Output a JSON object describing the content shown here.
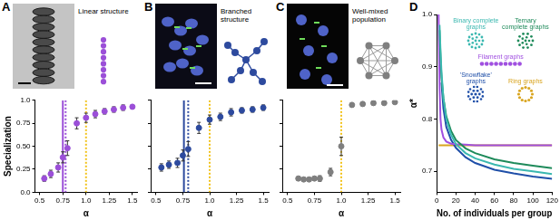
{
  "chart_data": [
    {
      "type": "scatter",
      "title": "A",
      "annotations": [
        "Linear structure"
      ],
      "x_label": "α",
      "y_label": "Specialization",
      "x": [
        0.55,
        0.62,
        0.7,
        0.75,
        0.8,
        0.9,
        1.0,
        1.1,
        1.2,
        1.3,
        1.4,
        1.5
      ],
      "values": [
        0.15,
        0.2,
        0.27,
        0.38,
        0.48,
        0.75,
        0.81,
        0.85,
        0.88,
        0.9,
        0.92,
        0.93
      ],
      "errors": [
        0.03,
        0.04,
        0.05,
        0.06,
        0.08,
        0.06,
        0.05,
        0.04,
        0.03,
        0.03,
        0.03,
        0.02
      ],
      "color": "#9b4fd8",
      "marker": "circle",
      "xlim": [
        0.45,
        1.55
      ],
      "xticks": [
        0.5,
        0.75,
        {
          "value": 1.0,
          "label": "1.0"
        },
        1.25,
        1.5
      ],
      "ylim": [
        0,
        1.0
      ],
      "yticks": [
        {
          "value": 0,
          "label": "0.0"
        },
        0.25,
        {
          "value": 0.5,
          "label": "0.50"
        },
        0.75,
        {
          "value": 1.0,
          "label": "1.0"
        }
      ],
      "reference_lines": [
        {
          "x": 0.75,
          "color": "#9b4fd8",
          "line_style": "solid"
        },
        {
          "x": 0.78,
          "color": "#9b4fd8",
          "line_style": "dotted"
        },
        {
          "x": 1.0,
          "color": "#f2c218",
          "line_style": "dotted"
        }
      ],
      "grid": false,
      "tick_labels": true
    },
    {
      "type": "scatter",
      "title": "B",
      "annotations": [
        "Branched structure"
      ],
      "x_label": "α",
      "x": [
        0.55,
        0.62,
        0.7,
        0.75,
        0.8,
        0.9,
        1.0,
        1.1,
        1.2,
        1.3,
        1.4,
        1.5
      ],
      "values": [
        0.27,
        0.3,
        0.32,
        0.4,
        0.47,
        0.7,
        0.79,
        0.82,
        0.87,
        0.89,
        0.9,
        0.92
      ],
      "errors": [
        0.04,
        0.04,
        0.05,
        0.06,
        0.08,
        0.06,
        0.05,
        0.04,
        0.04,
        0.03,
        0.03,
        0.03
      ],
      "color": "#2d4a9e",
      "marker": "circle",
      "xlim": [
        0.45,
        1.55
      ],
      "xticks": [
        0.5,
        0.75,
        {
          "value": 1.0,
          "label": "1.0"
        },
        1.25,
        1.5
      ],
      "ylim": [
        0,
        1.0
      ],
      "yticks": [
        0,
        0.25,
        0.5,
        0.75,
        1.0
      ],
      "reference_lines": [
        {
          "x": 0.76,
          "color": "#2d4a9e",
          "line_style": "solid"
        },
        {
          "x": 0.8,
          "color": "#2d4a9e",
          "line_style": "dotted"
        },
        {
          "x": 1.0,
          "color": "#f2c218",
          "line_style": "dotted"
        }
      ],
      "grid": false,
      "tick_labels": "x"
    },
    {
      "type": "scatter",
      "title": "C",
      "annotations": [
        "Well-mixed population"
      ],
      "x_label": "α",
      "x": [
        0.6,
        0.65,
        0.7,
        0.75,
        0.8,
        0.9,
        1.0,
        1.1,
        1.2,
        1.3,
        1.4,
        1.5
      ],
      "values": [
        0.15,
        0.14,
        0.14,
        0.15,
        0.15,
        0.22,
        0.5,
        0.95,
        0.96,
        0.97,
        0.97,
        0.98
      ],
      "errors": [
        0.02,
        0.02,
        0.02,
        0.02,
        0.03,
        0.04,
        0.1,
        0.02,
        0.02,
        0.02,
        0.01,
        0.01
      ],
      "color": "#7f7f7f",
      "marker": "circle",
      "xlim": [
        0.45,
        1.55
      ],
      "xticks": [
        0.5,
        0.75,
        {
          "value": 1.0,
          "label": "1.0"
        },
        1.25,
        1.5
      ],
      "ylim": [
        0,
        1.0
      ],
      "yticks": [
        0,
        0.25,
        0.5,
        0.75,
        1.0
      ],
      "reference_lines": [
        {
          "x": 1.0,
          "color": "#f2c218",
          "line_style": "dotted"
        }
      ],
      "grid": false,
      "tick_labels": "x"
    },
    {
      "type": "line",
      "title": "D",
      "x_label": "No. of individuals per group",
      "y_label": "α*",
      "x": [
        2,
        3,
        4,
        5,
        7,
        10,
        15,
        20,
        30,
        40,
        60,
        80,
        100,
        120
      ],
      "series": [
        {
          "name": "Binary complete graphs",
          "color": "#3bb8b0",
          "values": [
            null,
            0.98,
            0.93,
            0.89,
            0.84,
            0.8,
            0.77,
            0.752,
            0.735,
            0.725,
            0.713,
            0.705,
            0.7,
            0.695
          ]
        },
        {
          "name": "Ternary complete graphs",
          "color": "#1e8a5a",
          "values": [
            null,
            0.97,
            0.92,
            0.88,
            0.84,
            0.805,
            0.777,
            0.76,
            0.744,
            0.735,
            0.723,
            0.716,
            0.711,
            0.706
          ]
        },
        {
          "name": "Filament graphs",
          "color": "#a050e0",
          "values": [
            1.0,
            0.86,
            0.8,
            0.78,
            0.765,
            0.757,
            0.753,
            0.752,
            0.751,
            0.75,
            0.75,
            0.75,
            0.75,
            0.75
          ]
        },
        {
          "name": "'Snowflake' graphs",
          "color": "#1f4fa8",
          "values": [
            null,
            null,
            null,
            0.87,
            0.82,
            0.785,
            0.76,
            0.745,
            0.727,
            0.716,
            0.703,
            0.696,
            0.69,
            0.686
          ]
        },
        {
          "name": "Ring graphs",
          "color": "#d9a520",
          "values": [
            0.75,
            0.75,
            0.75,
            0.75,
            0.75,
            0.75,
            0.75,
            0.75,
            0.75,
            0.75,
            0.75,
            0.75,
            0.75,
            0.75
          ]
        }
      ],
      "xlim": [
        0,
        120
      ],
      "xticks": [
        0,
        20,
        40,
        60,
        80,
        100,
        120
      ],
      "ylim": [
        0.66,
        1.0
      ],
      "yticks": [
        0.7,
        0.8,
        0.9,
        {
          "value": 1.0,
          "label": "1.0"
        }
      ],
      "grid": false,
      "tick_labels": true
    }
  ]
}
